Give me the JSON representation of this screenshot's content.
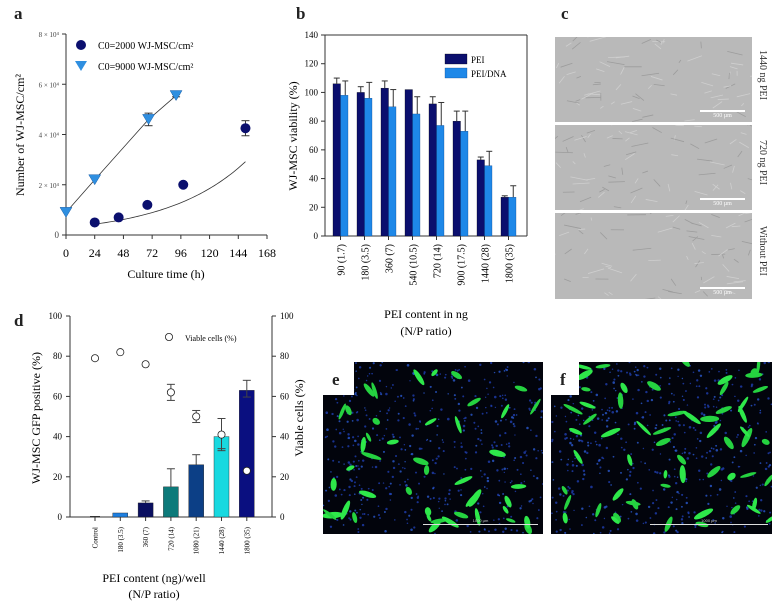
{
  "panels": {
    "a": {
      "label": "a"
    },
    "b": {
      "label": "b"
    },
    "c": {
      "label": "c"
    },
    "d": {
      "label": "d"
    },
    "e": {
      "label": "e"
    },
    "f": {
      "label": "f"
    }
  },
  "colors": {
    "navy": "#0b0f6e",
    "blue": "#1e88e8",
    "teal": "#0d7a7a",
    "medium_blue": "#0c3f86",
    "cyan": "#18d9e0",
    "dark_navy": "#0a0f80",
    "triangle_blue": "#2f8fe0"
  },
  "chart_data": [
    {
      "id": "a",
      "type": "scatter",
      "title": "",
      "xlabel": "Culture time (h)",
      "ylabel": "Number of WJ-MSC/cm²",
      "xlim": [
        0,
        168
      ],
      "ylim": [
        0,
        80000
      ],
      "xticks": [
        "0",
        "24",
        "48",
        "72",
        "96",
        "120",
        "144",
        "168"
      ],
      "yticks": [
        "0",
        "2 × 10⁴",
        "4 × 10⁴",
        "6 × 10⁴",
        "8 × 10⁴"
      ],
      "legend_position": "upper-left",
      "series": [
        {
          "name": "C0=2000 WJ-MSC/cm²",
          "marker": "circle",
          "x": [
            24,
            44,
            68,
            98,
            150
          ],
          "y": [
            5000,
            7000,
            12000,
            20000,
            42500
          ],
          "err": [
            0,
            0,
            0,
            0,
            3000
          ],
          "fit": "exponential"
        },
        {
          "name": "C0=9000 WJ-MSC/cm²",
          "marker": "triangle-down",
          "x": [
            0,
            24,
            69,
            92
          ],
          "y": [
            9000,
            22000,
            46000,
            55500
          ],
          "err": [
            0,
            0,
            2500,
            500
          ],
          "fit": "linear"
        }
      ]
    },
    {
      "id": "b",
      "type": "bar",
      "title": "",
      "xlabel": "PEI content in ng (N/P ratio)",
      "xlabel_lines": [
        "PEI content in ng",
        "(N/P ratio)"
      ],
      "ylabel": "WJ-MSC viability (%)",
      "ylim": [
        0,
        140
      ],
      "yticks": [
        "0",
        "20",
        "40",
        "60",
        "80",
        "100",
        "120",
        "140"
      ],
      "legend_position": "upper-right",
      "categories": [
        "90 (1.7)",
        "180 (3.5)",
        "360 (7)",
        "540 (10.5)",
        "720 (14)",
        "900 (17.5)",
        "1440 (28)",
        "1800 (35)"
      ],
      "series": [
        {
          "name": "PEI",
          "values": [
            106,
            100,
            103,
            102,
            92,
            80,
            53,
            27
          ],
          "err": [
            4,
            4,
            5,
            0,
            5,
            7,
            2,
            1
          ]
        },
        {
          "name": "PEI/DNA",
          "values": [
            98,
            96,
            90,
            85,
            77,
            73,
            49,
            27
          ],
          "err": [
            10,
            11,
            12,
            12,
            16,
            14,
            10,
            8
          ]
        }
      ]
    },
    {
      "id": "d",
      "type": "bar",
      "title": "",
      "xlabel": "PEI content (ng)/well (N/P ratio)",
      "xlabel_lines": [
        "PEI content (ng)/well",
        "(N/P ratio)"
      ],
      "ylabel": "WJ-MSC GFP positive (%)",
      "ylabel_right": "Viable cells (%)",
      "ylim": [
        0,
        100
      ],
      "yticks": [
        "0",
        "20",
        "40",
        "60",
        "80",
        "100"
      ],
      "legend_position": "upper-right",
      "categories": [
        "Control",
        "180 (3.5)",
        "360 (7)",
        "720 (14)",
        "1080 (21)",
        "1440 (28)",
        "1800 (35)"
      ],
      "series": [
        {
          "name": "GFP positive (%)",
          "values": [
            0,
            2,
            7,
            15,
            26,
            40,
            63
          ],
          "err": [
            0,
            0,
            1,
            9,
            5,
            9,
            5
          ],
          "bar_colors": [
            "#0b0f6e",
            "#1e7fe0",
            "#0a0f60",
            "#0d7a7a",
            "#0c3f86",
            "#18d9e0",
            "#0a0f80"
          ]
        },
        {
          "name": "Viable cells (%)",
          "marker": "open-circle",
          "values": [
            79,
            82,
            76,
            62,
            50,
            41,
            23
          ],
          "err": [
            0,
            0,
            0,
            4,
            3,
            8,
            0
          ]
        }
      ]
    }
  ],
  "micrographs_c": [
    {
      "side_label": "1440 ng PEI",
      "scale_bar": "500 µm"
    },
    {
      "side_label": "720 ng PEI",
      "scale_bar": "500 µm"
    },
    {
      "side_label": "Without PEI",
      "scale_bar": "500 µm"
    }
  ],
  "fluorescence": {
    "e": {
      "scale_bar": "1000 µm"
    },
    "f": {
      "scale_bar": "1000 µm"
    }
  }
}
